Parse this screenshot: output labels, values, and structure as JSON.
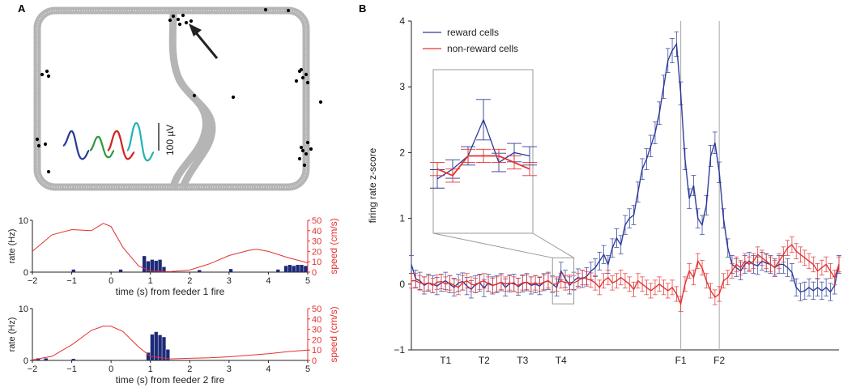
{
  "figure": {
    "panel_a_label": "A",
    "panel_b_label": "B",
    "track": {
      "track_color": "#b3b3b3",
      "spike_color": "#000000",
      "scale_bar_label": "100 µV",
      "waveform_colors": [
        "#2b3a97",
        "#2e9a3c",
        "#d42020",
        "#1fb3b3"
      ]
    }
  },
  "chart_data": [
    {
      "id": "feeder1",
      "type": "bar",
      "xlabel": "time (s) from feeder 1 fire",
      "ylabel_left": "rate (Hz)",
      "ylabel_right": "speed (cm/s)",
      "xlim": [
        -2,
        5
      ],
      "xticks": [
        -2,
        -1,
        0,
        1,
        2,
        3,
        4,
        5
      ],
      "ylim_left": [
        0,
        10
      ],
      "yticks_left": [
        0,
        10
      ],
      "ylim_right": [
        0,
        50
      ],
      "yticks_right": [
        0,
        10,
        20,
        30,
        40,
        50
      ],
      "bar_color": "#1e2a78",
      "speed_color": "#e53030",
      "bin_width": 0.1,
      "bins": [
        {
          "x": -1.0,
          "rate": 0.5
        },
        {
          "x": 0.2,
          "rate": 0.5
        },
        {
          "x": 0.8,
          "rate": 3.1
        },
        {
          "x": 0.9,
          "rate": 2.1
        },
        {
          "x": 1.0,
          "rate": 2.4
        },
        {
          "x": 1.1,
          "rate": 2.2
        },
        {
          "x": 1.2,
          "rate": 2.4
        },
        {
          "x": 1.3,
          "rate": 1.0
        },
        {
          "x": 2.2,
          "rate": 0.4
        },
        {
          "x": 3.0,
          "rate": 0.6
        },
        {
          "x": 4.2,
          "rate": 0.5
        },
        {
          "x": 4.4,
          "rate": 1.2
        },
        {
          "x": 4.5,
          "rate": 1.4
        },
        {
          "x": 4.6,
          "rate": 1.2
        },
        {
          "x": 4.7,
          "rate": 1.4
        },
        {
          "x": 4.8,
          "rate": 1.4
        },
        {
          "x": 4.9,
          "rate": 1.2
        }
      ],
      "speed": {
        "x": [
          -2,
          -1.5,
          -1,
          -0.5,
          -0.2,
          0,
          0.3,
          0.7,
          1,
          1.5,
          2,
          2.5,
          3,
          3.5,
          3.7,
          4,
          4.5,
          5
        ],
        "y": [
          20,
          36,
          41,
          40,
          47,
          44,
          24,
          6,
          1,
          0.5,
          2,
          8,
          16,
          21,
          22,
          20,
          14,
          9
        ]
      }
    },
    {
      "id": "feeder2",
      "type": "bar",
      "xlabel": "time (s) from feeder 2 fire",
      "ylabel_left": "rate (Hz)",
      "ylabel_right": "speed (cm/s)",
      "xlim": [
        -2,
        5
      ],
      "xticks": [
        -2,
        -1,
        0,
        1,
        2,
        3,
        4,
        5
      ],
      "ylim_left": [
        0,
        10
      ],
      "yticks_left": [
        0,
        10
      ],
      "ylim_right": [
        0,
        50
      ],
      "yticks_right": [
        0,
        10,
        20,
        30,
        40,
        50
      ],
      "bar_color": "#1e2a78",
      "speed_color": "#e53030",
      "bin_width": 0.1,
      "bins": [
        {
          "x": -1.9,
          "rate": 0.4
        },
        {
          "x": -1.7,
          "rate": 0.4
        },
        {
          "x": -1.0,
          "rate": 0.3
        },
        {
          "x": 0.9,
          "rate": 1.5
        },
        {
          "x": 1.0,
          "rate": 5.0
        },
        {
          "x": 1.1,
          "rate": 5.5
        },
        {
          "x": 1.2,
          "rate": 4.9
        },
        {
          "x": 1.3,
          "rate": 4.5
        },
        {
          "x": 1.4,
          "rate": 2.1
        }
      ],
      "speed": {
        "x": [
          -2,
          -1.5,
          -1,
          -0.5,
          -0.2,
          0,
          0.3,
          0.7,
          1,
          1.5,
          2,
          2.5,
          3,
          3.5,
          4,
          4.5,
          5
        ],
        "y": [
          0.5,
          4,
          15,
          29,
          33,
          33,
          28,
          13,
          4,
          1.5,
          2,
          2.5,
          3.5,
          5,
          6.5,
          8.5,
          10
        ]
      }
    },
    {
      "id": "zscore",
      "type": "line",
      "ylabel": "firing rate z-score",
      "ylim": [
        -1,
        4
      ],
      "yticks": [
        -1,
        0,
        1,
        2,
        3,
        4
      ],
      "xlim": [
        0,
        100
      ],
      "xtick_labels": [
        {
          "x": 8,
          "label": "T1"
        },
        {
          "x": 17,
          "label": "T2"
        },
        {
          "x": 26,
          "label": "T3"
        },
        {
          "x": 35,
          "label": "T4"
        },
        {
          "x": 63,
          "label": "F1"
        },
        {
          "x": 72,
          "label": "F2"
        }
      ],
      "vlines": [
        63,
        72
      ],
      "legend": [
        "reward cells",
        "non-reward cells"
      ],
      "series": [
        {
          "name": "reward cells",
          "color": "#2b3a97",
          "x": [
            0,
            1,
            2,
            3,
            4,
            5,
            6,
            7,
            8,
            9,
            10,
            11,
            12,
            13,
            14,
            15,
            16,
            17,
            18,
            19,
            20,
            21,
            22,
            23,
            24,
            25,
            26,
            27,
            28,
            29,
            30,
            31,
            32,
            33,
            34,
            35,
            36,
            37,
            38,
            39,
            40,
            41,
            42,
            43,
            44,
            45,
            46,
            47,
            48,
            49,
            50,
            51,
            52,
            53,
            54,
            55,
            56,
            57,
            58,
            59,
            60,
            61,
            62,
            63,
            64,
            65,
            66,
            67,
            68,
            69,
            70,
            71,
            72,
            73,
            74,
            75,
            76,
            77,
            78,
            79,
            80,
            81,
            82,
            83,
            84,
            85,
            86,
            87,
            88,
            89,
            90,
            91,
            92,
            93,
            94,
            95,
            96,
            97,
            98,
            99,
            100
          ],
          "y": [
            0.3,
            0.08,
            0.05,
            -0.02,
            0.02,
            0.0,
            -0.03,
            0.02,
            0.05,
            0.0,
            -0.05,
            0.02,
            0.04,
            -0.03,
            -0.08,
            0.0,
            0.02,
            -0.06,
            0.02,
            -0.02,
            0.0,
            0.03,
            -0.05,
            0.01,
            0.02,
            -0.04,
            0.01,
            0.03,
            -0.02,
            0.0,
            -0.03,
            0.03,
            0.05,
            0.0,
            -0.05,
            0.2,
            0.08,
            -0.02,
            0.05,
            0.1,
            0.08,
            0.12,
            0.2,
            0.25,
            0.35,
            0.45,
            0.3,
            0.55,
            0.7,
            0.6,
            0.9,
            1.0,
            1.05,
            1.4,
            1.75,
            1.9,
            2.1,
            2.3,
            2.6,
            3.0,
            3.4,
            3.55,
            3.65,
            2.9,
            1.9,
            1.3,
            1.5,
            1.0,
            0.9,
            1.2,
            1.95,
            2.15,
            1.7,
            1.0,
            0.55,
            0.3,
            0.25,
            0.2,
            0.3,
            0.35,
            0.3,
            0.28,
            0.35,
            0.32,
            0.3,
            0.25,
            0.3,
            0.3,
            0.25,
            0.18,
            -0.05,
            -0.12,
            -0.1,
            -0.05,
            -0.1,
            -0.05,
            -0.1,
            -0.05,
            -0.12,
            -0.02,
            0.3
          ],
          "err": 0.13
        },
        {
          "name": "non-reward cells",
          "color": "#e53030",
          "x": [
            0,
            1,
            2,
            3,
            4,
            5,
            6,
            7,
            8,
            9,
            10,
            11,
            12,
            13,
            14,
            15,
            16,
            17,
            18,
            19,
            20,
            21,
            22,
            23,
            24,
            25,
            26,
            27,
            28,
            29,
            30,
            31,
            32,
            33,
            34,
            35,
            36,
            37,
            38,
            39,
            40,
            41,
            42,
            43,
            44,
            45,
            46,
            47,
            48,
            49,
            50,
            51,
            52,
            53,
            54,
            55,
            56,
            57,
            58,
            59,
            60,
            61,
            62,
            63,
            64,
            65,
            66,
            67,
            68,
            69,
            70,
            71,
            72,
            73,
            74,
            75,
            76,
            77,
            78,
            79,
            80,
            81,
            82,
            83,
            84,
            85,
            86,
            87,
            88,
            89,
            90,
            91,
            92,
            93,
            94,
            95,
            96,
            97,
            98,
            99,
            100
          ],
          "y": [
            0.05,
            0.05,
            0.02,
            0.0,
            0.02,
            -0.02,
            0.03,
            0.04,
            0.0,
            0.02,
            -0.02,
            -0.05,
            0.02,
            0.05,
            0.0,
            -0.02,
            0.03,
            0.05,
            0.0,
            -0.02,
            0.0,
            0.03,
            0.0,
            0.02,
            0.0,
            -0.02,
            0.02,
            0.03,
            0.0,
            0.02,
            0.0,
            0.03,
            0.05,
            0.0,
            0.0,
            0.05,
            0.02,
            0.03,
            0.02,
            0.05,
            0.1,
            0.08,
            0.06,
            0.02,
            -0.05,
            0.05,
            0.1,
            0.02,
            0.05,
            0.1,
            0.05,
            0.0,
            -0.08,
            0.05,
            0.0,
            -0.05,
            -0.1,
            -0.05,
            0.0,
            -0.05,
            -0.1,
            -0.05,
            -0.15,
            -0.3,
            0.0,
            0.2,
            0.1,
            0.35,
            0.25,
            0.05,
            -0.1,
            -0.2,
            -0.15,
            0.05,
            0.1,
            0.2,
            0.3,
            0.25,
            0.35,
            0.3,
            0.35,
            0.45,
            0.4,
            0.35,
            0.3,
            0.25,
            0.35,
            0.45,
            0.55,
            0.6,
            0.5,
            0.45,
            0.4,
            0.35,
            0.3,
            0.2,
            0.25,
            0.3,
            0.2,
            0.1,
            0.3
          ],
          "err": 0.11
        }
      ],
      "inset": {
        "source_x_range": [
          33,
          38
        ],
        "source_y_range": [
          -0.3,
          0.4
        ],
        "reward_y": [
          1.6,
          1.75,
          1.95,
          2.5,
          1.85,
          2.0,
          1.95
        ],
        "nonreward_y": [
          1.75,
          1.65,
          1.95,
          1.95,
          1.95,
          1.85,
          1.75
        ]
      }
    }
  ]
}
